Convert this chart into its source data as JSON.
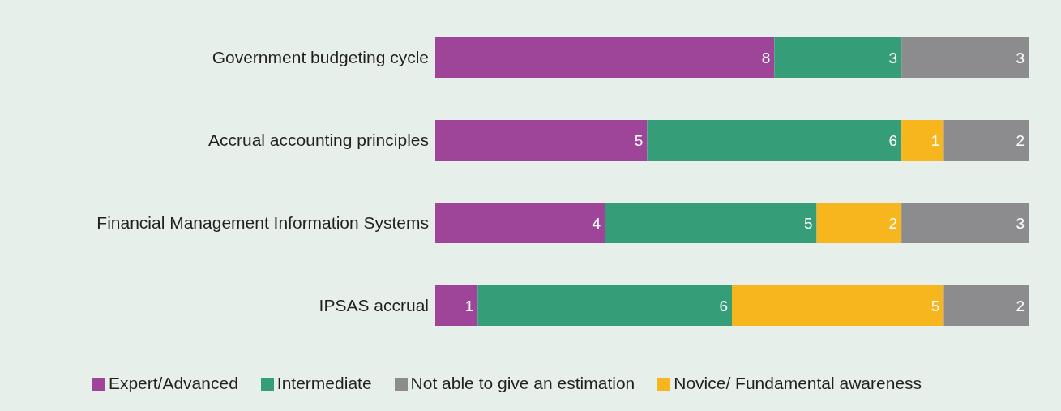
{
  "chart_data": {
    "type": "bar",
    "orientation": "horizontal",
    "stacked": true,
    "data_labels": true,
    "legend": "bottom",
    "grid": false,
    "categories": [
      "Government budgeting cycle",
      "Accrual accounting principles",
      "Financial Management Information Systems",
      "IPSAS accrual"
    ],
    "series": [
      {
        "name": "Expert/Advanced",
        "color": "#9e4499",
        "values": [
          8,
          5,
          4,
          1
        ]
      },
      {
        "name": "Intermediate",
        "color": "#359e78",
        "values": [
          3,
          6,
          5,
          6
        ]
      },
      {
        "name": "Novice/ Fundamental awareness",
        "color": "#f7b51e",
        "values": [
          null,
          1,
          2,
          5
        ]
      },
      {
        "name": "Not able to give an estimation",
        "color": "#8c8c8e",
        "values": [
          3,
          2,
          3,
          2
        ]
      }
    ]
  }
}
